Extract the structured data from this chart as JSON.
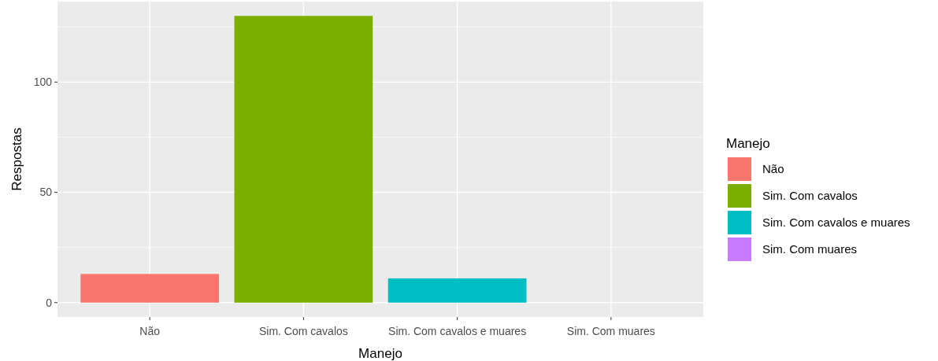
{
  "chart_data": {
    "type": "bar",
    "xlabel": "Manejo",
    "ylabel": "Respostas",
    "legend_title": "Manejo",
    "categories": [
      "Não",
      "Sim. Com cavalos",
      "Sim. Com cavalos e muares",
      "Sim. Com muares"
    ],
    "stacked": true,
    "series": [
      {
        "name": "Não",
        "color": "#f8766d",
        "values": [
          13,
          null,
          null,
          null
        ]
      },
      {
        "name": "Sim. Com cavalos",
        "color": "#7cae00",
        "values": [
          null,
          130,
          null,
          null
        ]
      },
      {
        "name": "Sim. Com cavalos e muares",
        "color": "#00bfc4",
        "values": [
          null,
          null,
          11,
          null
        ]
      },
      {
        "name": "Sim. Com muares",
        "color": "#c77cff",
        "values": [
          null,
          null,
          null,
          0
        ]
      }
    ],
    "ylim": [
      -6.5,
      136.5
    ],
    "yticks": [
      0,
      50,
      100
    ],
    "grid": true,
    "legend": "right"
  }
}
